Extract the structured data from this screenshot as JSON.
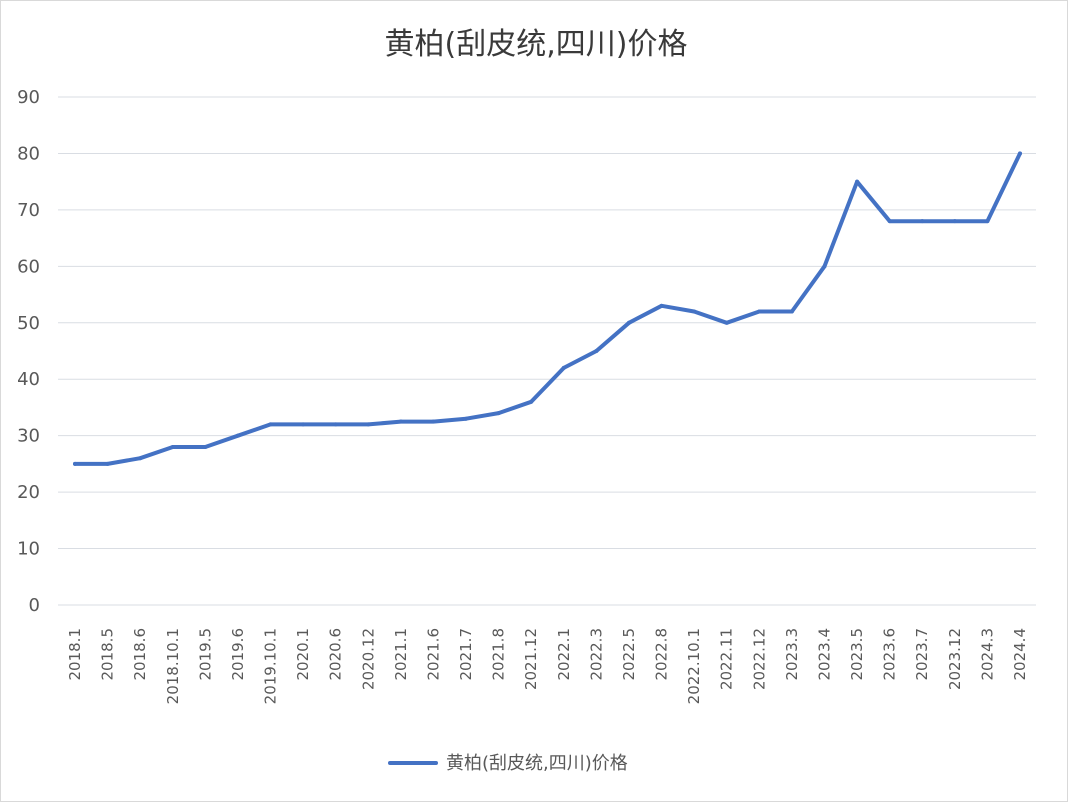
{
  "chart_data": {
    "type": "line",
    "title": "黄柏(刮皮统,四川)价格",
    "xlabel": "",
    "ylabel": "",
    "ylim": [
      0,
      90
    ],
    "yticks": [
      0,
      10,
      20,
      30,
      40,
      50,
      60,
      70,
      80,
      90
    ],
    "grid": true,
    "legend_position": "bottom",
    "categories": [
      "2018.1",
      "2018.5",
      "2018.6",
      "2018.10.1",
      "2019.5",
      "2019.6",
      "2019.10.1",
      "2020.1",
      "2020.6",
      "2020.12",
      "2021.1",
      "2021.6",
      "2021.7",
      "2021.8",
      "2021.12",
      "2022.1",
      "2022.3",
      "2022.5",
      "2022.8",
      "2022.10.1",
      "2022.11",
      "2022.12",
      "2023.3",
      "2023.4",
      "2023.5",
      "2023.6",
      "2023.7",
      "2023.12",
      "2024.3",
      "2024.4"
    ],
    "series": [
      {
        "name": "黄柏(刮皮统,四川)价格",
        "color": "#4472c4",
        "values": [
          25,
          25,
          26,
          28,
          28,
          30,
          32,
          32,
          32,
          32,
          32.5,
          32.5,
          33,
          34,
          36,
          42,
          45,
          50,
          53,
          52,
          50,
          52,
          52,
          60,
          75,
          68,
          68,
          68,
          68,
          80
        ]
      }
    ]
  }
}
